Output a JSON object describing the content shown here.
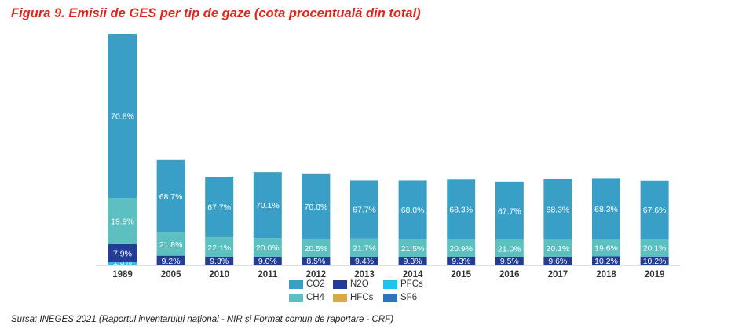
{
  "title": "Figura 9. Emisii de GES per tip de gaze (cota procentuală din total)",
  "source": "Sursa: INEGES 2021 (Raportul inventarului național - NIR și Format comun de raportare - CRF)",
  "colors": {
    "CO2": "#3a9fc6",
    "CH4": "#5cbfc0",
    "N2O": "#233d96",
    "PFCs": "#1cc4ef",
    "HFCs": "#d6a94a",
    "SF6": "#2f74b8"
  },
  "chart_data": {
    "type": "bar",
    "stacked": true,
    "categories": [
      "1989",
      "2005",
      "2010",
      "2011",
      "2012",
      "2013",
      "2014",
      "2015",
      "2016",
      "2017",
      "2018",
      "2019"
    ],
    "value_unit": "%",
    "relative_heights": [
      100,
      45.5,
      38.3,
      40.3,
      39.4,
      36.8,
      36.8,
      37.2,
      36.0,
      37.3,
      37.5,
      36.7
    ],
    "series": [
      {
        "name": "PFCs",
        "labels": [
          "1.3%",
          "",
          "",
          "",
          "",
          "",
          "",
          "",
          "",
          "",
          "",
          ""
        ],
        "values": [
          1.3,
          0,
          0,
          0,
          0,
          0,
          0,
          0,
          0,
          0,
          0,
          0
        ]
      },
      {
        "name": "N2O",
        "labels": [
          "7.9%",
          "9.2%",
          "9.3%",
          "9.0%",
          "8.5%",
          "9.4%",
          "9.3%",
          "9.3%",
          "9.5%",
          "9.6%",
          "10.2%",
          "10.2%"
        ],
        "values": [
          7.9,
          9.2,
          9.3,
          9.0,
          8.5,
          9.4,
          9.3,
          9.3,
          9.5,
          9.6,
          10.2,
          10.2
        ]
      },
      {
        "name": "CH4",
        "labels": [
          "19.9%",
          "21.8%",
          "22.1%",
          "20.0%",
          "20.5%",
          "21.7%",
          "21.5%",
          "20.9%",
          "21.0%",
          "20.1%",
          "19.6%",
          "20.1%"
        ],
        "values": [
          19.9,
          21.8,
          22.1,
          20.0,
          20.5,
          21.7,
          21.5,
          20.9,
          21.0,
          20.1,
          19.6,
          20.1
        ]
      },
      {
        "name": "CO2",
        "labels": [
          "70.8%",
          "68.7%",
          "67.7%",
          "70.1%",
          "70.0%",
          "67.7%",
          "68.0%",
          "68.3%",
          "67.7%",
          "68.3%",
          "68.3%",
          "67.6%"
        ],
        "values": [
          70.8,
          68.7,
          67.7,
          70.1,
          70.0,
          67.7,
          68.0,
          68.3,
          67.7,
          68.3,
          68.3,
          67.6
        ]
      }
    ],
    "legend": {
      "position": "bottom",
      "items": [
        "CO2",
        "N2O",
        "PFCs",
        "CH4",
        "HFCs",
        "SF6"
      ]
    },
    "grid": false
  }
}
